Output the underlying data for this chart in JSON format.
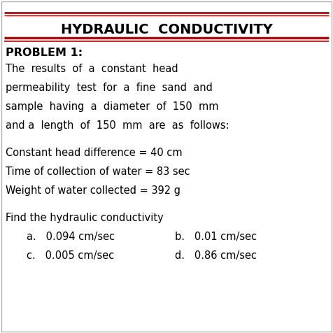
{
  "title": "HYDRAULIC  CONDUCTIVITY",
  "problem_label": "PROBLEM 1:",
  "body_lines": [
    "The  results  of  a  constant  head",
    "permeability  test  for  a  fine  sand  and",
    "sample  having  a  diameter  of  150  mm",
    "and a  length  of  150  mm  are  as  follows:"
  ],
  "data_lines": [
    "Constant head difference = 40 cm",
    "Time of collection of water = 83 sec",
    "Weight of water collected = 392 g"
  ],
  "find_text": "Find the hydraulic conductivity",
  "choice_row1_left": "a.   0.094 cm/sec",
  "choice_row1_right": "b.   0.01 cm/sec",
  "choice_row2_left": "c.   0.005 cm/sec",
  "choice_row2_right": "d.   0.86 cm/sec",
  "bg_color": "#ffffff",
  "text_color": "#000000",
  "red_color": "#cc0000",
  "border_color": "#b0b0b0"
}
